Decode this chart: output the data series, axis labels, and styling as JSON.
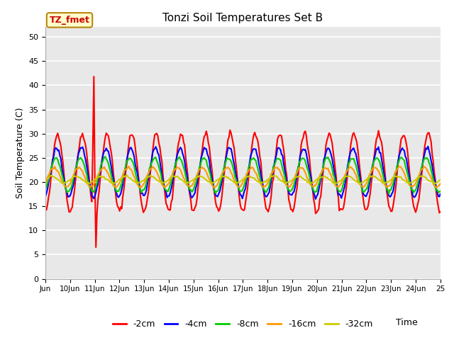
{
  "title": "Tonzi Soil Temperatures Set B",
  "xlabel": "Time",
  "ylabel": "Soil Temperature (C)",
  "plot_bg_color": "#e8e8e8",
  "ylim": [
    0,
    52
  ],
  "yticks": [
    0,
    5,
    10,
    15,
    20,
    25,
    30,
    35,
    40,
    45,
    50
  ],
  "xlim": [
    0,
    16
  ],
  "series_colors": [
    "#ff0000",
    "#0000ff",
    "#00cc00",
    "#ff9900",
    "#cccc00"
  ],
  "series_labels": [
    "-2cm",
    "-4cm",
    "-8cm",
    "-16cm",
    "-32cm"
  ],
  "annotation_text": "TZ_fmet",
  "annotation_bg": "#ffffcc",
  "annotation_edge": "#b8860b",
  "annotation_text_color": "#cc0000",
  "xtick_labels": [
    "Jun",
    "10Jun",
    "11Jun",
    "12Jun",
    "13Jun",
    "14Jun",
    "15Jun",
    "16Jun",
    "17Jun",
    "18Jun",
    "19Jun",
    "20Jun",
    "21Jun",
    "22Jun",
    "23Jun",
    "24Jun",
    "25"
  ],
  "grid_color": "#ffffff",
  "linewidth": 1.5
}
